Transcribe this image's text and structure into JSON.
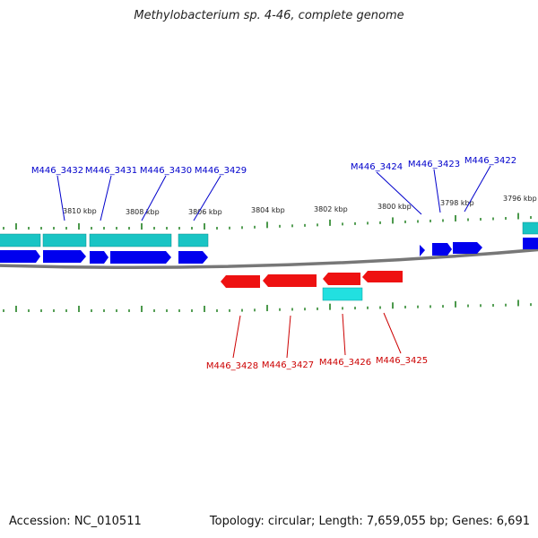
{
  "title": "Methylobacterium sp. 4-46, complete genome",
  "footer": {
    "accession": "Accession: NC_010511",
    "summary": "Topology: circular; Length: 7,659,055 bp; Genes: 6,691"
  },
  "colors": {
    "forward_cds": "#0000ee",
    "forward_gene": "#19c4c4",
    "reverse_cds": "#ee1111",
    "reverse_gene": "#22e0e0",
    "backbone": "#777777",
    "tick": "#117711",
    "forward_label": "#0000cc",
    "reverse_label": "#cc0000"
  },
  "kbp_labels": [
    "3810 kbp",
    "3808 kbp",
    "3806 kbp",
    "3804 kbp",
    "3802 kbp",
    "3800 kbp",
    "3798 kbp",
    "3796 kbp"
  ],
  "forward_labels": [
    "M446_3432",
    "M446_3431",
    "M446_3430",
    "M446_3429",
    "M446_3424",
    "M446_3423",
    "M446_3422"
  ],
  "reverse_labels": [
    "M446_3428",
    "M446_3427",
    "M446_3426",
    "M446_3425"
  ]
}
